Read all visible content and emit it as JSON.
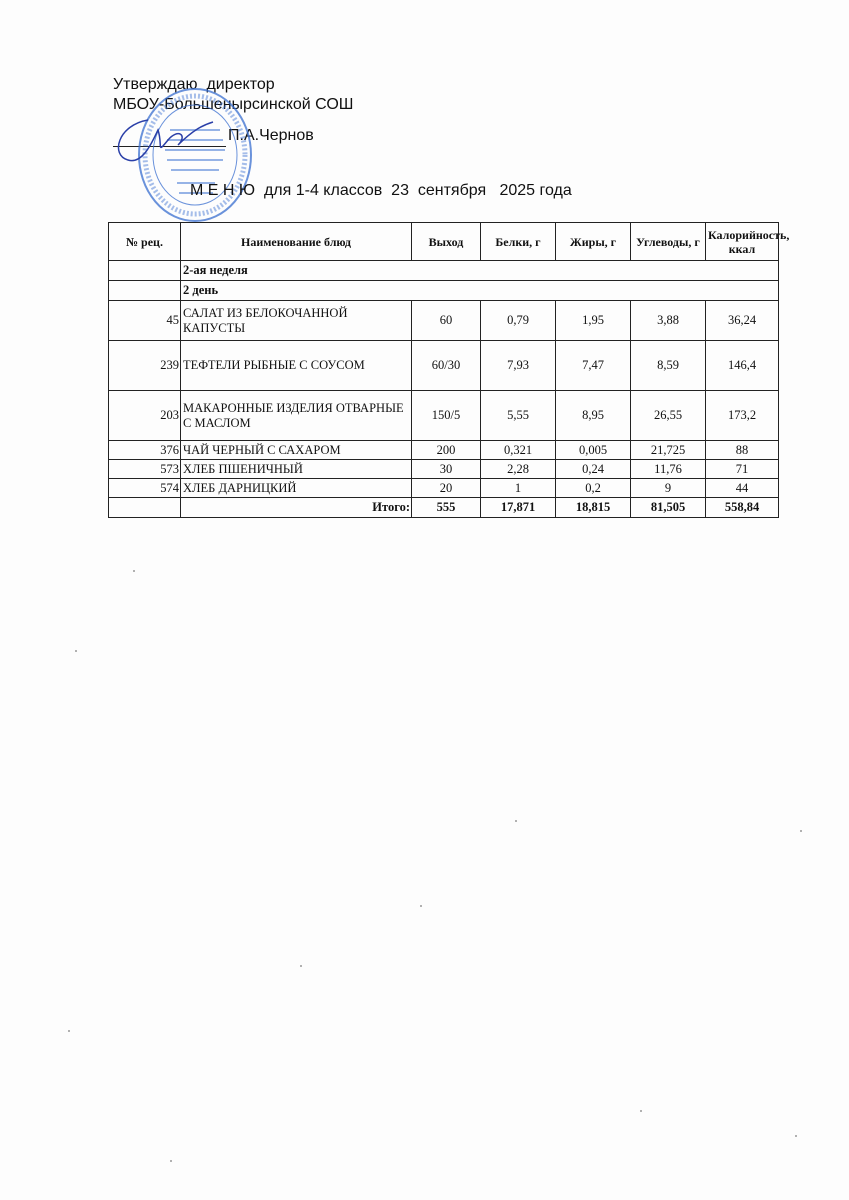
{
  "header": {
    "approve": "Утверждаю  директор",
    "school": "МБОУ-Большенырсинской СОШ",
    "director": "П.А.Чернов",
    "title": "М Е Н Ю  для 1-4 классов  23  сентября   2025 года"
  },
  "stamp": {
    "text": "МБОУ БОЛЬШЕНЫРСИНСКАЯ СРЕДНЯЯ ОБЩЕОБРАЗОВАТЕЛЬНАЯ ШКОЛА",
    "color": "#3a6fd0"
  },
  "table": {
    "headers": [
      "№ рец.",
      "Наименование блюд",
      "Выход",
      "Белки, г",
      "Жиры, г",
      "Углеводы, г",
      "Калорийность, ккал"
    ],
    "week": "2-ая неделя",
    "day": "2 день",
    "rows": [
      {
        "num": "45",
        "name": "САЛАТ ИЗ БЕЛОКОЧАННОЙ КАПУСТЫ",
        "yield": "60",
        "protein": "0,79",
        "fat": "1,95",
        "carbs": "3,88",
        "kcal": "36,24"
      },
      {
        "num": "239",
        "name": "ТЕФТЕЛИ РЫБНЫЕ С СОУСОМ",
        "yield": "60/30",
        "protein": "7,93",
        "fat": "7,47",
        "carbs": "8,59",
        "kcal": "146,4"
      },
      {
        "num": "203",
        "name": "МАКАРОННЫЕ ИЗДЕЛИЯ ОТВАРНЫЕ С МАСЛОМ",
        "yield": "150/5",
        "protein": "5,55",
        "fat": "8,95",
        "carbs": "26,55",
        "kcal": "173,2"
      },
      {
        "num": "376",
        "name": "ЧАЙ ЧЕРНЫЙ С САХАРОМ",
        "yield": "200",
        "protein": "0,321",
        "fat": "0,005",
        "carbs": "21,725",
        "kcal": "88"
      },
      {
        "num": "573",
        "name": "ХЛЕБ ПШЕНИЧНЫЙ",
        "yield": "30",
        "protein": "2,28",
        "fat": "0,24",
        "carbs": "11,76",
        "kcal": "71"
      },
      {
        "num": "574",
        "name": "ХЛЕБ ДАРНИЦКИЙ",
        "yield": "20",
        "protein": "1",
        "fat": "0,2",
        "carbs": "9",
        "kcal": "44"
      }
    ],
    "total": {
      "label": "Итого:",
      "yield": "555",
      "protein": "17,871",
      "fat": "18,815",
      "carbs": "81,505",
      "kcal": "558,84"
    }
  }
}
